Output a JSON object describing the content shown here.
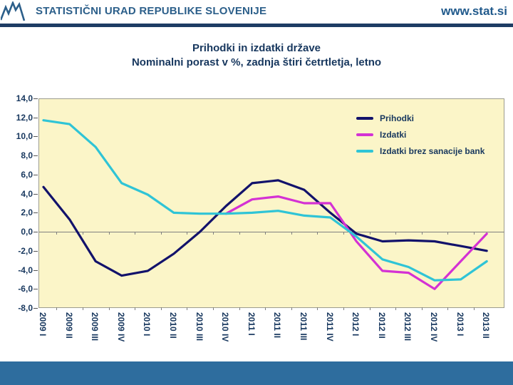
{
  "header": {
    "org_name": "STATISTIČNI URAD REPUBLIKE SLOVENIJE",
    "website": "www.stat.si"
  },
  "colors": {
    "header_text": "#2c5f8a",
    "header_rule": "#1e3c64",
    "title_text": "#17375e",
    "footer_bar": "#2e6d9e"
  },
  "chart_data": {
    "type": "line",
    "title": "Prihodki in izdatki države",
    "subtitle": "Nominalni porast v %, zadnja štiri četrtletja, letno",
    "categories": [
      "2009 I",
      "2009 II",
      "2009 III",
      "2009 IV",
      "2010 I",
      "2010 II",
      "2010 III",
      "2010 IV",
      "2011 I",
      "2011 II",
      "2011 III",
      "2011 IV",
      "2012 I",
      "2012 II",
      "2012 III",
      "2012 IV",
      "2013 I",
      "2013 II"
    ],
    "series": [
      {
        "name": "Prihodki",
        "color": "#12126b",
        "values": [
          4.7,
          1.3,
          -3.1,
          -4.6,
          -4.1,
          -2.3,
          0.0,
          2.7,
          5.1,
          5.4,
          4.4,
          2.0,
          -0.2,
          -1.0,
          -0.9,
          -1.0,
          -1.5,
          -2.0
        ]
      },
      {
        "name": "Izdatki",
        "color": "#d431d4",
        "values": [
          null,
          null,
          null,
          null,
          null,
          null,
          null,
          1.9,
          3.4,
          3.7,
          3.0,
          3.0,
          -1.0,
          -4.1,
          -4.3,
          -6.0,
          -3.1,
          -0.2
        ]
      },
      {
        "name": "Izdatki brez sanacije bank",
        "color": "#2fc4d6",
        "values": [
          11.7,
          11.3,
          8.9,
          5.1,
          3.9,
          2.0,
          1.9,
          1.9,
          2.0,
          2.2,
          1.7,
          1.5,
          -0.5,
          -2.9,
          -3.7,
          -5.1,
          -5.0,
          -3.1
        ]
      }
    ],
    "ylim": [
      -8,
      14
    ],
    "y_tick_step": 2,
    "y_tick_labels": [
      "14,0",
      "12,0",
      "10,0",
      "8,0",
      "6,0",
      "4,0",
      "2,0",
      "0,0",
      "-2,0",
      "-4,0",
      "-6,0",
      "-8,0"
    ],
    "xlabel": "",
    "ylabel": "",
    "grid": "zero-line-only",
    "legend_position": "top-right-in-plot",
    "plot_bg_color": "#fbf5c8",
    "zero_line_color": "#808080",
    "axis_text_color": "#17375e"
  }
}
